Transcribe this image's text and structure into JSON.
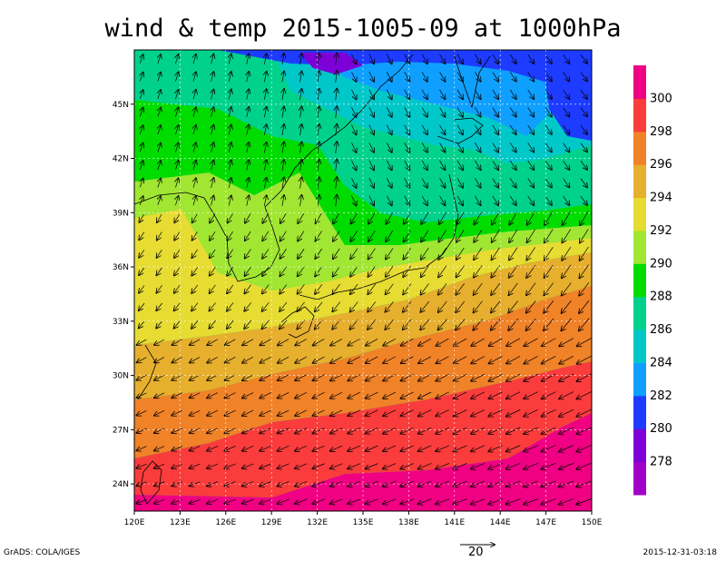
{
  "title": "wind & temp 2015-1005-09 at 1000hPa",
  "footer": {
    "left": "GrADS: COLA/IGES",
    "right": "2015-12-31-03:18"
  },
  "reference_vector": {
    "value": 20,
    "label": "20"
  },
  "map": {
    "lon_range": [
      120,
      150
    ],
    "lat_range": [
      22.5,
      48
    ],
    "lon_ticks": [
      {
        "value": 120,
        "label": "120E"
      },
      {
        "value": 123,
        "label": "123E"
      },
      {
        "value": 126,
        "label": "126E"
      },
      {
        "value": 129,
        "label": "129E"
      },
      {
        "value": 132,
        "label": "132E"
      },
      {
        "value": 135,
        "label": "135E"
      },
      {
        "value": 138,
        "label": "138E"
      },
      {
        "value": 141,
        "label": "141E"
      },
      {
        "value": 144,
        "label": "144E"
      },
      {
        "value": 147,
        "label": "147E"
      },
      {
        "value": 150,
        "label": "150E"
      }
    ],
    "lat_ticks": [
      {
        "value": 24,
        "label": "24N"
      },
      {
        "value": 27,
        "label": "27N"
      },
      {
        "value": 30,
        "label": "30N"
      },
      {
        "value": 33,
        "label": "33N"
      },
      {
        "value": 36,
        "label": "36N"
      },
      {
        "value": 39,
        "label": "39N"
      },
      {
        "value": 42,
        "label": "42N"
      },
      {
        "value": 45,
        "label": "45N"
      }
    ],
    "grid": "dotted"
  },
  "colorbar": {
    "levels": [
      {
        "label": "278",
        "color": "#7d00d6"
      },
      {
        "label": "280",
        "color": "#1e3cff"
      },
      {
        "label": "282",
        "color": "#0fa0ff"
      },
      {
        "label": "284",
        "color": "#00c8c8"
      },
      {
        "label": "286",
        "color": "#00d28c"
      },
      {
        "label": "288",
        "color": "#00dc00"
      },
      {
        "label": "290",
        "color": "#a0e632"
      },
      {
        "label": "292",
        "color": "#e6dc32"
      },
      {
        "label": "294",
        "color": "#e6af2d"
      },
      {
        "label": "296",
        "color": "#f08228"
      },
      {
        "label": "298",
        "color": "#fa3c3c"
      },
      {
        "label": "300",
        "color": "#f00082"
      }
    ],
    "end_colors": {
      "low": "#a000c8",
      "high": "#f00082"
    }
  }
}
